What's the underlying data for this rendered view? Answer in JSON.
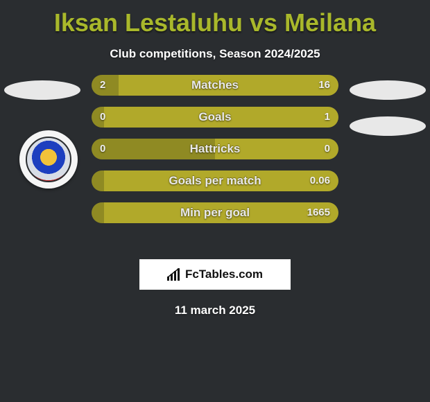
{
  "title_color": "#a9b82b",
  "title": "Iksan Lestaluhu vs Meilana",
  "subtitle": "Club competitions, Season 2024/2025",
  "bars": {
    "left_color": "#8f8a23",
    "right_color": "#b1a92a",
    "rows": [
      {
        "label": "Matches",
        "left": "2",
        "right": "16",
        "left_pct": 11,
        "right_pct": 89
      },
      {
        "label": "Goals",
        "left": "0",
        "right": "1",
        "left_pct": 5,
        "right_pct": 95
      },
      {
        "label": "Hattricks",
        "left": "0",
        "right": "0",
        "left_pct": 50,
        "right_pct": 50
      },
      {
        "label": "Goals per match",
        "left": "",
        "right": "0.06",
        "left_pct": 5,
        "right_pct": 95
      },
      {
        "label": "Min per goal",
        "left": "",
        "right": "1665",
        "left_pct": 5,
        "right_pct": 95
      }
    ]
  },
  "footer_brand": "FcTables.com",
  "footer_date": "11 march 2025"
}
